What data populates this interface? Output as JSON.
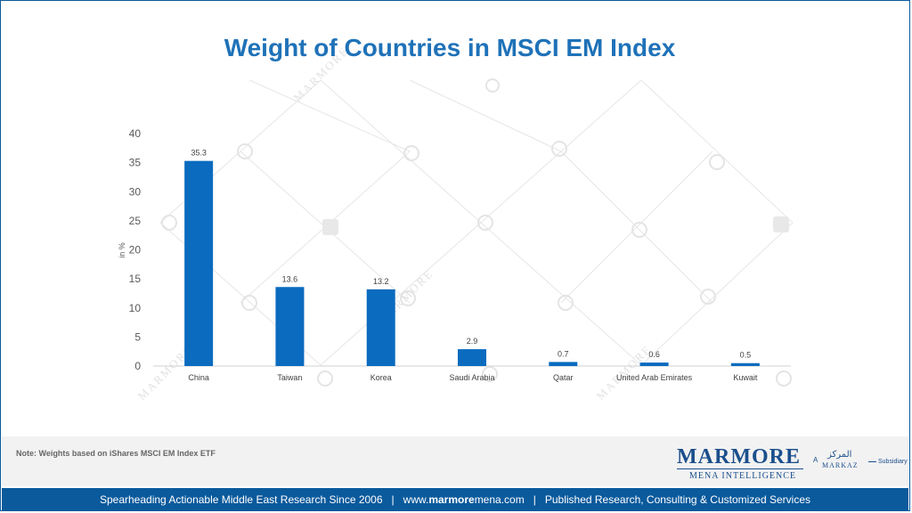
{
  "chart_data": {
    "type": "bar",
    "title": "Weight of Countries in MSCI EM Index",
    "ylabel": "in %",
    "xlabel": "",
    "ylim": [
      0,
      40
    ],
    "yticks": [
      0,
      5,
      10,
      15,
      20,
      25,
      30,
      35,
      40
    ],
    "categories": [
      "China",
      "Taiwan",
      "Korea",
      "Saudi Arabia",
      "Qatar",
      "United Arab Emirates",
      "Kuwait"
    ],
    "values": [
      35.3,
      13.6,
      13.2,
      2.9,
      0.7,
      0.6,
      0.5
    ],
    "data_labels": [
      "35.3",
      "13.6",
      "13.2",
      "2.9",
      "0.7",
      "0.6",
      "0.5"
    ],
    "grid": false,
    "legend": "none",
    "bar_color": "#0a6bbf"
  },
  "note": "Note: Weights based on iShares MSCI EM Index ETF",
  "logo": {
    "brand": "MARMORE",
    "tagline": "MENA INTELLIGENCE",
    "a_label": "A",
    "parent_ar": "المركز",
    "parent_en": "MARKAZ",
    "subsidiary": "Subsidiary"
  },
  "watermark_text": "MARMORE",
  "footer": {
    "left": "Spearheading Actionable Middle East Research Since 2006",
    "separator": "|",
    "url_prefix": "www.",
    "url_bold": "marmore",
    "url_suffix": "mena.com",
    "right": "Published Research, Consulting & Customized Services"
  },
  "colors": {
    "title": "#1f72b8",
    "footer_bg": "#0a5a9c",
    "brand": "#1b4f8c"
  }
}
